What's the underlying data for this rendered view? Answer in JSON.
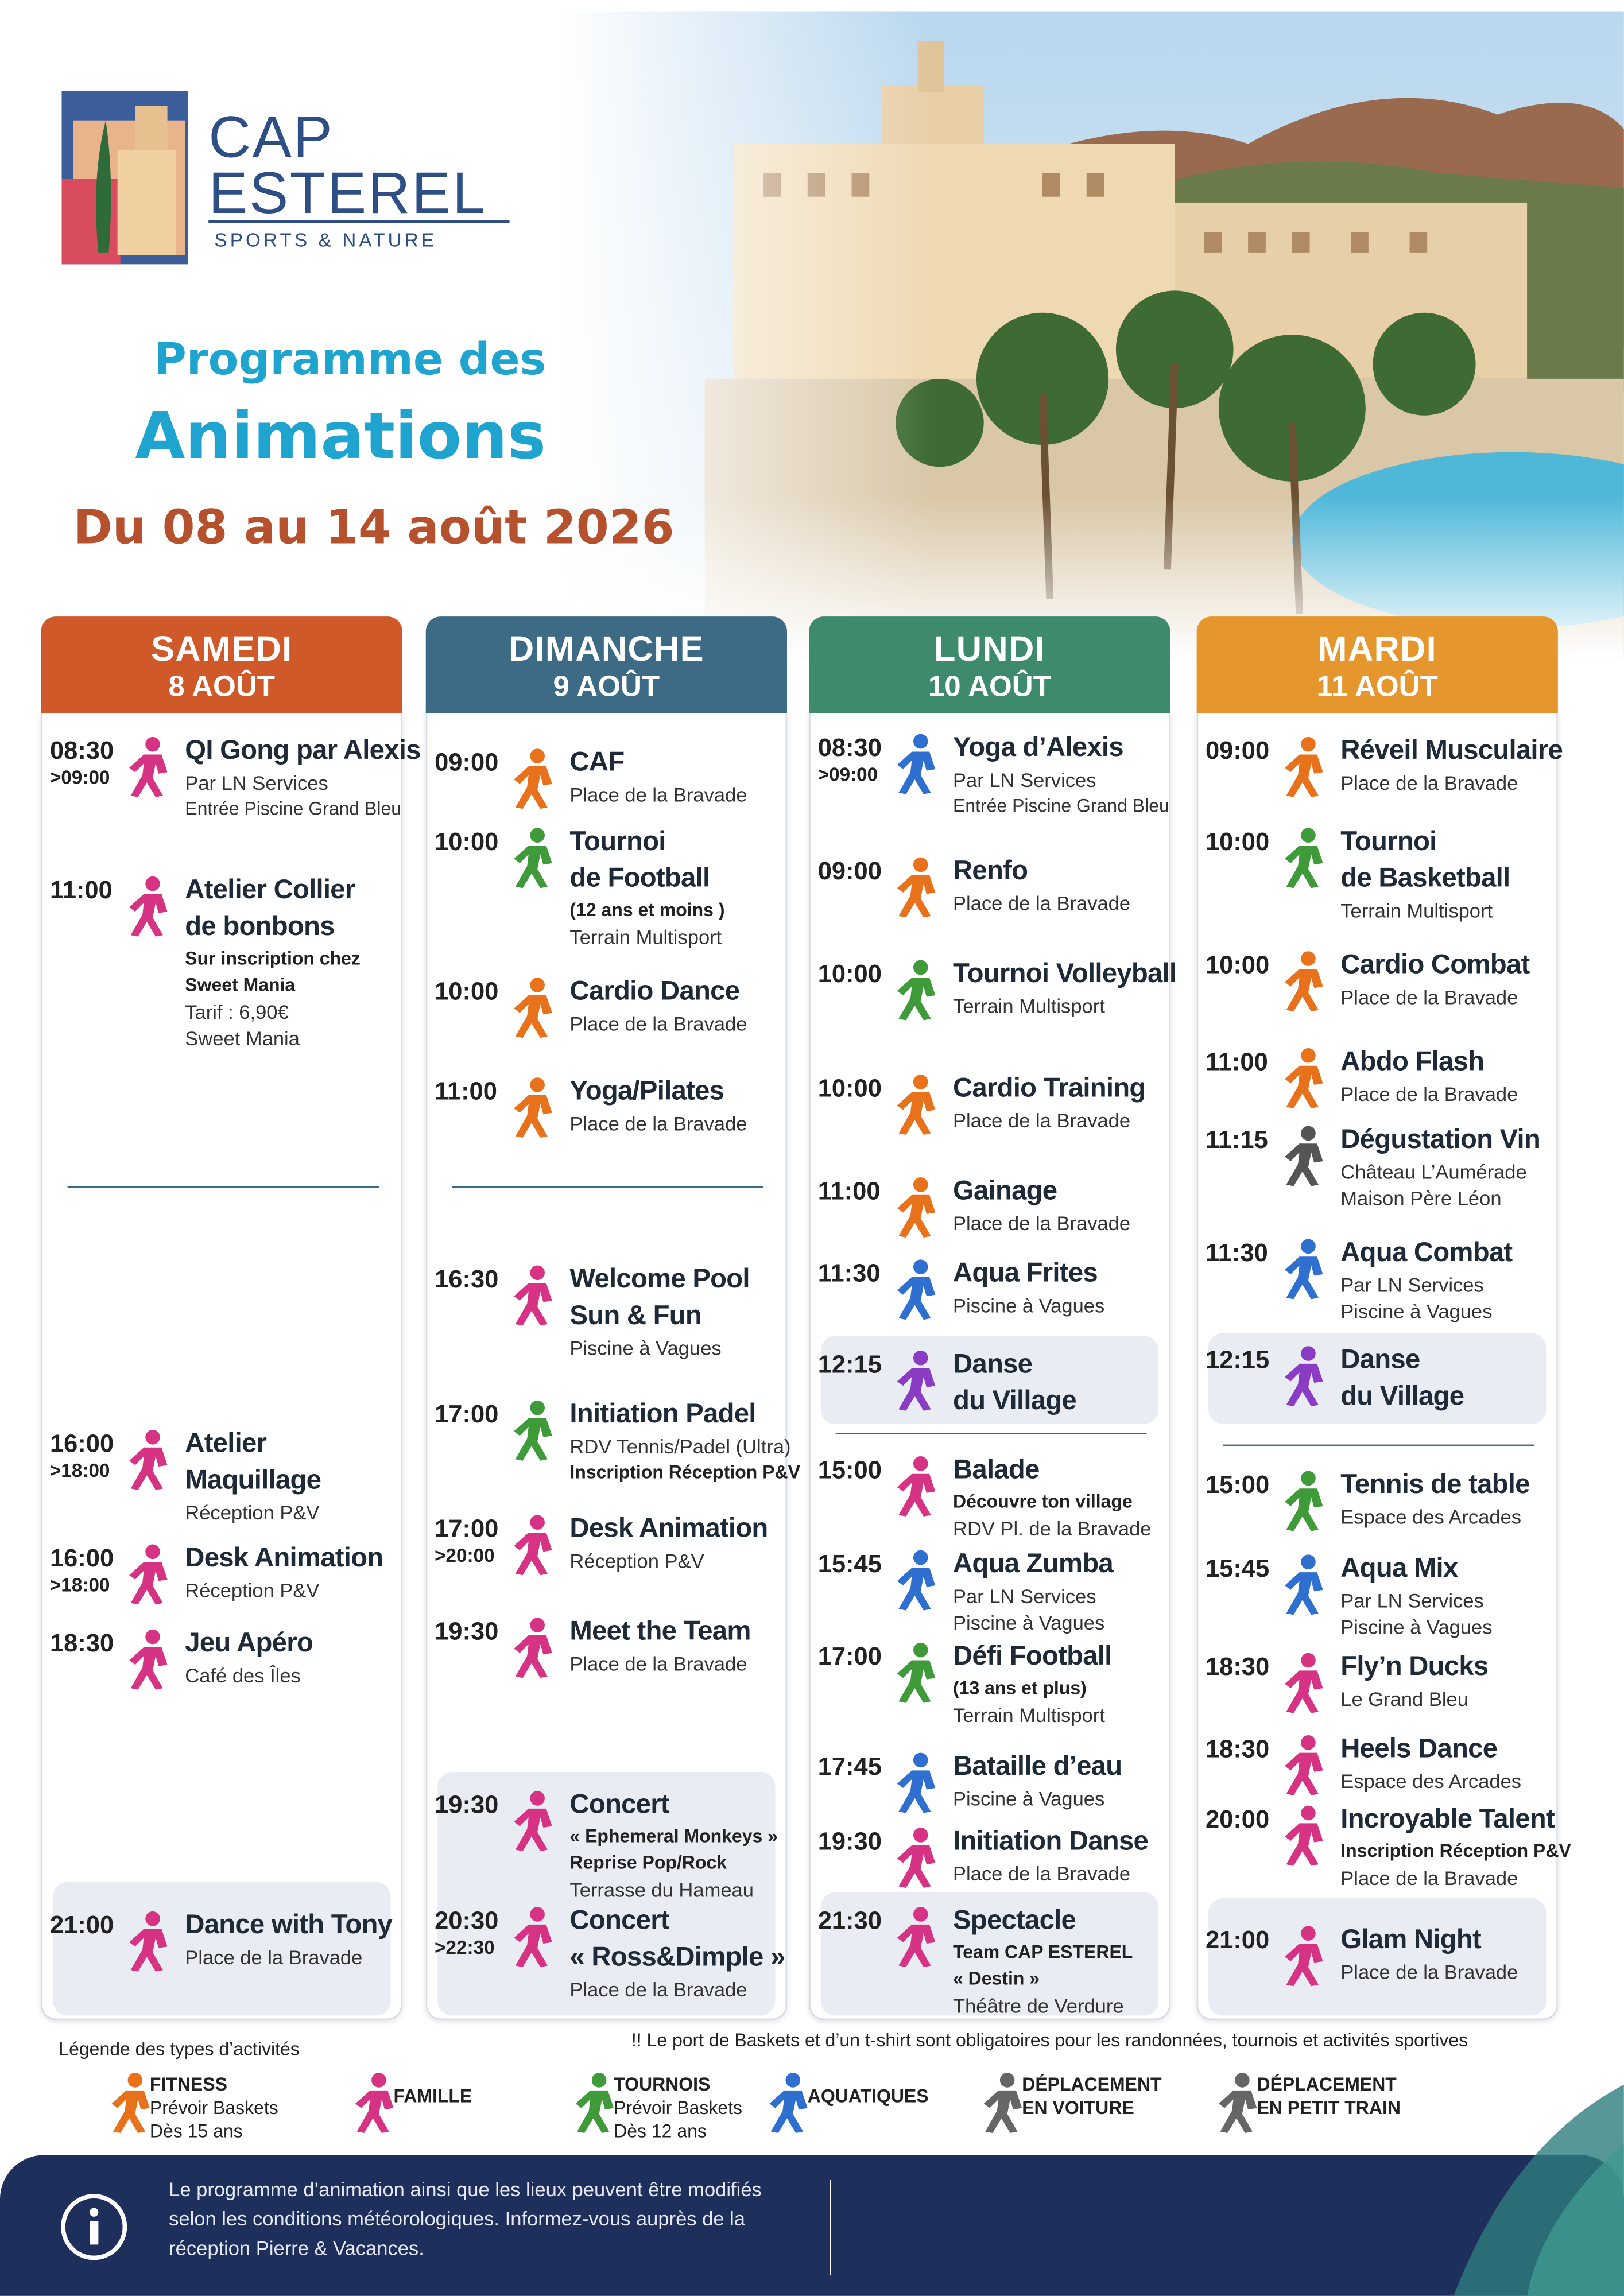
{
  "header": {
    "brand": [
      "CAP",
      "ESTEREL"
    ],
    "tagline": "SPORTS & NATURE",
    "title": [
      "Programme des",
      "Animations"
    ],
    "dates": "Du 08 au 14 août 2026"
  },
  "days": [
    {
      "name": "SAMEDI",
      "date": "8 AOÛT",
      "color": "#d0592a",
      "events": [
        {
          "time": "08:30",
          "end": ">09:00",
          "icon": "#d63384",
          "title": [
            "QI Gong par Alexis"
          ],
          "details": [
            "Par LN Services",
            {
              "text": "Entrée Piscine Grand Bleu",
              "small": true
            }
          ]
        },
        {
          "time": "11:00",
          "icon": "#d63384",
          "title": [
            "Atelier Collier",
            "de bonbons"
          ],
          "details": [
            {
              "text": "Sur inscription chez",
              "bold": true
            },
            {
              "text": "Sweet Mania",
              "bold": true
            },
            "Tarif : 6,90€",
            "Sweet Mania"
          ]
        },
        {
          "time": "16:00",
          "end": ">18:00",
          "icon": "#d63384",
          "title": [
            "Atelier",
            "Maquillage"
          ],
          "details": [
            "Réception P&V"
          ]
        },
        {
          "time": "16:00",
          "end": ">18:00",
          "icon": "#d63384",
          "title": [
            "Desk Animation"
          ],
          "details": [
            "Réception P&V"
          ]
        },
        {
          "time": "18:30",
          "icon": "#d63384",
          "title": [
            "Jeu Apéro"
          ],
          "details": [
            "Café des Îles"
          ]
        },
        {
          "time": "21:00",
          "icon": "#d63384",
          "title": [
            "Dance with Tony"
          ],
          "details": [
            "Place de la Bravade"
          ]
        }
      ]
    },
    {
      "name": "DIMANCHE",
      "date": "9 AOÛT",
      "color": "#3d6b86",
      "events": [
        {
          "time": "09:00",
          "icon": "#e8711c",
          "title": [
            "CAF"
          ],
          "details": [
            "Place de la Bravade"
          ]
        },
        {
          "time": "10:00",
          "icon": "#3f9a3a",
          "title": [
            "Tournoi",
            "de Football"
          ],
          "details": [
            {
              "text": "(12 ans et moins )",
              "bold": true
            },
            "Terrain Multisport"
          ]
        },
        {
          "time": "10:00",
          "icon": "#e8711c",
          "title": [
            "Cardio Dance"
          ],
          "details": [
            "Place de la Bravade"
          ]
        },
        {
          "time": "11:00",
          "icon": "#e8711c",
          "title": [
            "Yoga/Pilates"
          ],
          "details": [
            "Place de la Bravade"
          ]
        },
        {
          "time": "16:30",
          "icon": "#d63384",
          "title": [
            "Welcome Pool",
            "Sun & Fun"
          ],
          "details": [
            "Piscine à Vagues"
          ]
        },
        {
          "time": "17:00",
          "icon": "#3f9a3a",
          "title": [
            "Initiation Padel"
          ],
          "details": [
            "RDV Tennis/Padel (Ultra)",
            {
              "text": "Inscription Réception P&V",
              "bold": true
            }
          ]
        },
        {
          "time": "17:00",
          "end": ">20:00",
          "icon": "#d63384",
          "title": [
            "Desk Animation"
          ],
          "details": [
            "Réception P&V"
          ]
        },
        {
          "time": "19:30",
          "icon": "#d63384",
          "title": [
            "Meet the Team"
          ],
          "details": [
            "Place de la Bravade"
          ]
        },
        {
          "time": "19:30",
          "icon": "#d63384",
          "title": [
            "Concert"
          ],
          "details": [
            {
              "text": "« Ephemeral Monkeys »",
              "bold": true
            },
            {
              "text": "Reprise Pop/Rock",
              "bold": true
            },
            "Terrasse du Hameau"
          ]
        },
        {
          "time": "20:30",
          "end": ">22:30",
          "icon": "#d63384",
          "title": [
            "Concert",
            "« Ross&Dimple »"
          ],
          "details": [
            "Place de la Bravade"
          ]
        }
      ]
    },
    {
      "name": "LUNDI",
      "date": "10 AOÛT",
      "color": "#3e8a6c",
      "events": [
        {
          "time": "08:30",
          "end": ">09:00",
          "icon": "#2f6fd0",
          "title": [
            "Yoga d’Alexis"
          ],
          "details": [
            "Par LN Services",
            {
              "text": "Entrée Piscine Grand Bleu",
              "small": true
            }
          ]
        },
        {
          "time": "09:00",
          "icon": "#e8711c",
          "title": [
            "Renfo"
          ],
          "details": [
            "Place de la Bravade"
          ]
        },
        {
          "time": "10:00",
          "icon": "#3f9a3a",
          "title": [
            "Tournoi Volleyball"
          ],
          "details": [
            "Terrain Multisport"
          ]
        },
        {
          "time": "10:00",
          "icon": "#e8711c",
          "title": [
            "Cardio Training"
          ],
          "details": [
            "Place de la Bravade"
          ]
        },
        {
          "time": "11:00",
          "icon": "#e8711c",
          "title": [
            "Gainage"
          ],
          "details": [
            "Place de la Bravade"
          ]
        },
        {
          "time": "11:30",
          "icon": "#2f6fd0",
          "title": [
            "Aqua Frites"
          ],
          "details": [
            "Piscine à Vagues"
          ]
        },
        {
          "time": "12:15",
          "icon": "#8a3cc4",
          "title": [
            "Danse",
            "du Village"
          ],
          "details": []
        },
        {
          "time": "15:00",
          "icon": "#d63384",
          "title": [
            "Balade"
          ],
          "details": [
            {
              "text": "Découvre ton village",
              "bold": true
            },
            "RDV Pl. de la Bravade"
          ]
        },
        {
          "time": "15:45",
          "icon": "#2f6fd0",
          "title": [
            "Aqua Zumba"
          ],
          "details": [
            "Par LN Services",
            "Piscine à Vagues"
          ]
        },
        {
          "time": "17:00",
          "icon": "#3f9a3a",
          "title": [
            "Défi Football"
          ],
          "details": [
            {
              "text": "(13 ans et plus)",
              "bold": true
            },
            "Terrain Multisport"
          ]
        },
        {
          "time": "17:45",
          "icon": "#2f6fd0",
          "title": [
            "Bataille d’eau"
          ],
          "details": [
            "Piscine à Vagues"
          ]
        },
        {
          "time": "19:30",
          "icon": "#d63384",
          "title": [
            "Initiation Danse"
          ],
          "details": [
            "Place de la Bravade"
          ]
        },
        {
          "time": "21:30",
          "icon": "#d63384",
          "title": [
            "Spectacle"
          ],
          "details": [
            {
              "text": "Team CAP ESTEREL",
              "bold": true
            },
            {
              "text": "« Destin »",
              "bold": true
            },
            "Théâtre de Verdure"
          ]
        }
      ]
    },
    {
      "name": "MARDI",
      "date": "11 AOÛT",
      "color": "#e5962d",
      "events": [
        {
          "time": "09:00",
          "icon": "#e8711c",
          "title": [
            "Réveil Musculaire"
          ],
          "details": [
            "Place de la Bravade"
          ]
        },
        {
          "time": "10:00",
          "icon": "#3f9a3a",
          "title": [
            "Tournoi",
            "de Basketball"
          ],
          "details": [
            "Terrain Multisport"
          ]
        },
        {
          "time": "10:00",
          "icon": "#e8711c",
          "title": [
            "Cardio Combat"
          ],
          "details": [
            "Place de la Bravade"
          ]
        },
        {
          "time": "11:00",
          "icon": "#e8711c",
          "title": [
            "Abdo Flash"
          ],
          "details": [
            "Place de la Bravade"
          ]
        },
        {
          "time": "11:15",
          "icon": "#555555",
          "title": [
            "Dégustation Vin"
          ],
          "details": [
            "Château L’Aumérade",
            "Maison Père Léon"
          ]
        },
        {
          "time": "11:30",
          "icon": "#2f6fd0",
          "title": [
            "Aqua Combat"
          ],
          "details": [
            "Par LN Services",
            "Piscine à Vagues"
          ]
        },
        {
          "time": "12:15",
          "icon": "#8a3cc4",
          "title": [
            "Danse",
            "du Village"
          ],
          "details": []
        },
        {
          "time": "15:00",
          "icon": "#3f9a3a",
          "title": [
            "Tennis de table"
          ],
          "details": [
            "Espace des Arcades"
          ]
        },
        {
          "time": "15:45",
          "icon": "#2f6fd0",
          "title": [
            "Aqua Mix"
          ],
          "details": [
            "Par LN Services",
            "Piscine à Vagues"
          ]
        },
        {
          "time": "18:30",
          "icon": "#d63384",
          "title": [
            "Fly’n Ducks"
          ],
          "details": [
            "Le Grand Bleu"
          ]
        },
        {
          "time": "18:30",
          "icon": "#d63384",
          "title": [
            "Heels Dance"
          ],
          "details": [
            "Espace des Arcades"
          ]
        },
        {
          "time": "20:00",
          "icon": "#d63384",
          "title": [
            "Incroyable Talent"
          ],
          "details": [
            {
              "text": "Inscription Réception P&V",
              "bold": true
            },
            "Place de la Bravade"
          ]
        },
        {
          "time": "21:00",
          "icon": "#d63384",
          "title": [
            "Glam Night"
          ],
          "details": [
            "Place de la Bravade"
          ]
        }
      ]
    }
  ],
  "legend": {
    "title": "Légende des types d’activités",
    "note": "!! Le port de Baskets et d’un t-shirt sont obligatoires pour les randonnées, tournois et activités sportives",
    "items": [
      {
        "label": "FITNESS",
        "lines": [
          "Prévoir Baskets",
          "Dès 15 ans"
        ]
      },
      {
        "label": "FAMILLE",
        "lines": []
      },
      {
        "label": "TOURNOIS",
        "lines": [
          "Prévoir Baskets",
          "Dès 12 ans"
        ]
      },
      {
        "label": "AQUATIQUES",
        "lines": []
      },
      {
        "label": "DÉPLACEMENT",
        "lines": [
          "EN VOITURE"
        ]
      },
      {
        "label": "DÉPLACEMENT",
        "lines": [
          "EN PETIT TRAIN"
        ]
      }
    ]
  },
  "footer": {
    "lines": [
      "Le programme d’animation ainsi que les lieux peuvent être modifiés",
      "selon les conditions météorologiques. Informez-vous auprès de la",
      "réception Pierre & Vacances."
    ]
  }
}
